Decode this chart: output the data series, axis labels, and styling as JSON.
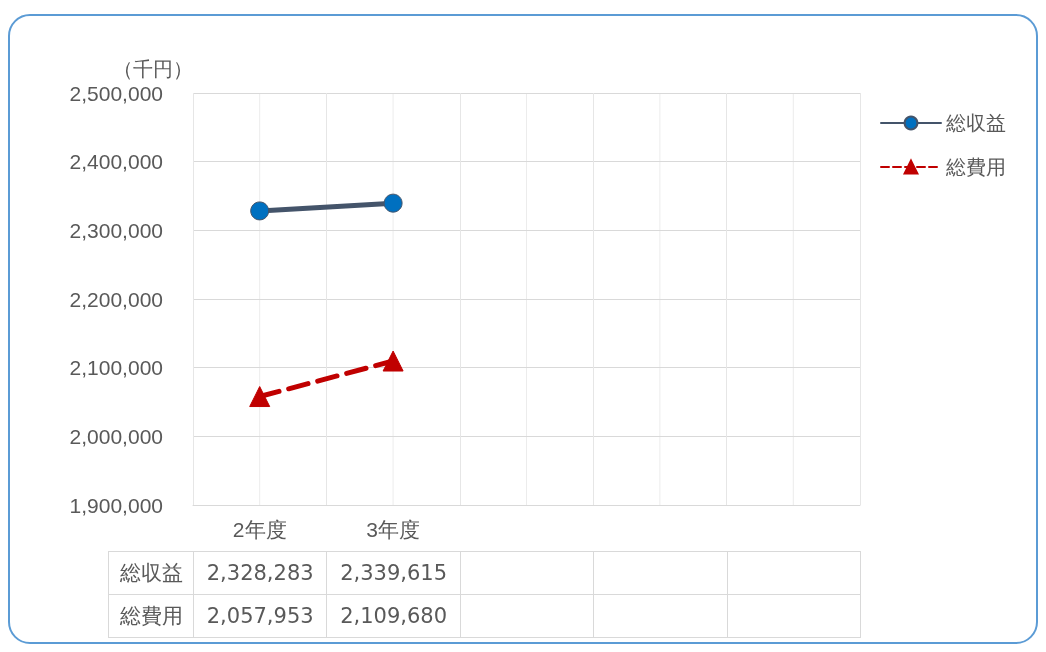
{
  "chart_data": {
    "type": "line",
    "ylabel": "（千円）",
    "categories": [
      "2年度",
      "3年度",
      null,
      null,
      null
    ],
    "series": [
      {
        "name": "総収益",
        "color": "#44546a",
        "values": [
          2328283,
          2339615,
          null,
          null,
          null
        ],
        "value_labels": [
          "2,328,283",
          "2,339,615",
          null,
          null,
          null
        ],
        "marker": "circle",
        "line_style": "solid"
      },
      {
        "name": "総費用",
        "color": "#c00000",
        "values": [
          2057953,
          2109680,
          null,
          null,
          null
        ],
        "value_labels": [
          "2,057,953",
          "2,109,680",
          null,
          null,
          null
        ],
        "marker": "triangle",
        "line_style": "dashed"
      }
    ],
    "ylim": [
      1900000,
      2500000
    ],
    "yticks": [
      {
        "value": 1900000,
        "label": "1,900,000"
      },
      {
        "value": 2000000,
        "label": "2,000,000"
      },
      {
        "value": 2100000,
        "label": "2,100,000"
      },
      {
        "value": 2200000,
        "label": "2,200,000"
      },
      {
        "value": 2300000,
        "label": "2,300,000"
      },
      {
        "value": 2400000,
        "label": "2,400,000"
      },
      {
        "value": 2500000,
        "label": "2,500,000"
      }
    ],
    "grid": true,
    "legend": "right"
  }
}
